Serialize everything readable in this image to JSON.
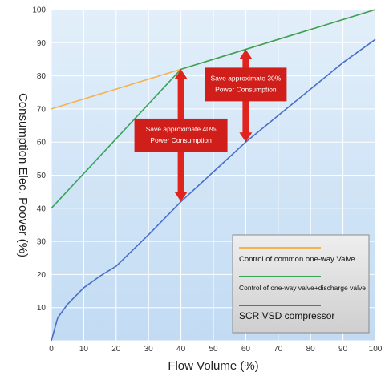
{
  "chart_data": {
    "type": "line",
    "xlabel": "Flow Volume (%)",
    "ylabel": "Consumption Elec. Poover (%)",
    "xlim": [
      0,
      100
    ],
    "ylim": [
      0,
      100
    ],
    "x_ticks": [
      0,
      10,
      20,
      30,
      40,
      50,
      60,
      70,
      80,
      90,
      100
    ],
    "y_ticks": [
      10,
      20,
      30,
      40,
      50,
      60,
      70,
      80,
      90,
      100
    ],
    "grid": true,
    "legend_position": "bottom-right",
    "series": [
      {
        "name": "Control of common one-way Valve",
        "color": "#f5b24c",
        "x": [
          0,
          40,
          100
        ],
        "y": [
          70,
          82,
          100
        ]
      },
      {
        "name": "Control of one-way valve+discharge valve",
        "color": "#3aa35a",
        "x": [
          0,
          40,
          100
        ],
        "y": [
          40,
          82,
          100
        ]
      },
      {
        "name": "SCR VSD compressor",
        "color": "#4a6fc9",
        "x": [
          0,
          2,
          5,
          10,
          15,
          20,
          30,
          40,
          50,
          60,
          70,
          80,
          90,
          100
        ],
        "y": [
          0,
          7,
          11,
          16,
          19.5,
          22.5,
          32,
          42,
          51,
          60,
          68,
          76,
          84,
          91
        ]
      }
    ],
    "annotations": [
      {
        "lines": [
          "Save approximate 40%",
          "Power Consumption"
        ],
        "x": 40,
        "y_top": 82,
        "y_bottom": 42
      },
      {
        "lines": [
          "Save approximate 30%",
          "Power Consumption"
        ],
        "x": 60,
        "y_top": 88,
        "y_bottom": 60
      }
    ],
    "colors": {
      "plot_bg": "#cfe4f7",
      "grid": "#ffffff",
      "arrow": "#e0231c",
      "label_box": "#d01e1a"
    }
  }
}
